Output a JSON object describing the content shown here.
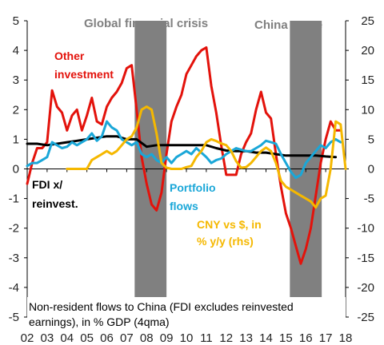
{
  "chart_data": {
    "type": "line",
    "title": "",
    "caption_lines": [
      "Non-resident flows to China (FDI excludes reinvested",
      "earnings),  in % GDP (4qma)"
    ],
    "x_tick_labels": [
      "02",
      "03",
      "04",
      "05",
      "06",
      "07",
      "08",
      "09",
      "10",
      "11",
      "12",
      "13",
      "14",
      "15",
      "16",
      "17",
      "18"
    ],
    "xlim": [
      2002,
      2018
    ],
    "y_left": {
      "lim": [
        -5,
        5
      ],
      "ticks": [
        -5,
        -4,
        -3,
        -2,
        -1,
        0,
        1,
        2,
        3,
        4,
        5
      ]
    },
    "y_right": {
      "lim": [
        -25,
        25
      ],
      "ticks": [
        -25,
        -20,
        -15,
        -10,
        -5,
        0,
        5,
        10,
        15,
        20,
        25
      ],
      "label": "rhs"
    },
    "bands": [
      {
        "label": "Global  financial crisis",
        "x0": 2007.4,
        "x1": 2009.0,
        "color": "#808080"
      },
      {
        "label": "China scare",
        "x0": 2015.2,
        "x1": 2016.8,
        "color": "#808080"
      }
    ],
    "series": [
      {
        "name": "Other investment",
        "label_lines": [
          "Other",
          "investment"
        ],
        "axis": "left",
        "color": "#e3120b",
        "x": [
          2002.0,
          2002.25,
          2002.5,
          2002.75,
          2003.0,
          2003.25,
          2003.5,
          2003.75,
          2004.0,
          2004.25,
          2004.5,
          2004.75,
          2005.0,
          2005.25,
          2005.5,
          2005.75,
          2006.0,
          2006.25,
          2006.5,
          2006.75,
          2007.0,
          2007.25,
          2007.5,
          2007.75,
          2008.0,
          2008.25,
          2008.5,
          2008.75,
          2009.0,
          2009.25,
          2009.5,
          2009.75,
          2010.0,
          2010.25,
          2010.5,
          2010.75,
          2011.0,
          2011.25,
          2011.5,
          2011.75,
          2012.0,
          2012.25,
          2012.5,
          2012.75,
          2013.0,
          2013.25,
          2013.5,
          2013.75,
          2014.0,
          2014.25,
          2014.5,
          2014.75,
          2015.0,
          2015.25,
          2015.5,
          2015.75,
          2016.0,
          2016.25,
          2016.5,
          2016.75,
          2017.0,
          2017.25,
          2017.5,
          2017.75
        ],
        "values": [
          -0.5,
          0.2,
          0.7,
          0.7,
          0.9,
          2.65,
          2.1,
          1.9,
          1.3,
          1.8,
          2.0,
          1.3,
          1.8,
          2.4,
          1.6,
          1.5,
          2.1,
          2.4,
          2.6,
          2.9,
          3.4,
          3.5,
          2.0,
          0.4,
          -0.5,
          -1.2,
          -1.4,
          -0.8,
          0.5,
          1.6,
          2.1,
          2.5,
          3.2,
          3.5,
          3.8,
          4.0,
          4.1,
          2.8,
          1.9,
          0.8,
          -0.2,
          -0.2,
          -0.2,
          0.5,
          0.9,
          1.2,
          2.0,
          2.6,
          1.9,
          1.7,
          0.5,
          -0.6,
          -1.5,
          -2.0,
          -2.6,
          -3.2,
          -2.7,
          -2.0,
          -0.9,
          0.2,
          1.0,
          1.6,
          1.3,
          1.3
        ]
      },
      {
        "name": "FDI x/ reinvest.",
        "label_lines": [
          "FDI x/",
          "reinvest."
        ],
        "axis": "left",
        "color": "#000000",
        "x": [
          2002.0,
          2002.5,
          2003.0,
          2003.5,
          2004.0,
          2004.5,
          2005.0,
          2005.5,
          2006.0,
          2006.5,
          2007.0,
          2007.5,
          2008.0,
          2008.5,
          2009.0,
          2009.5,
          2010.0,
          2010.5,
          2011.0,
          2011.5,
          2012.0,
          2012.5,
          2013.0,
          2013.5,
          2014.0,
          2014.5,
          2015.0,
          2015.5,
          2016.0,
          2016.5,
          2017.0,
          2017.5
        ],
        "values": [
          0.85,
          0.85,
          0.8,
          0.85,
          0.9,
          0.95,
          1.0,
          1.05,
          1.1,
          1.1,
          1.0,
          1.0,
          0.75,
          0.8,
          0.8,
          0.8,
          0.8,
          0.8,
          0.8,
          0.7,
          0.62,
          0.6,
          0.6,
          0.55,
          0.55,
          0.5,
          0.45,
          0.45,
          0.45,
          0.45,
          0.42,
          0.4
        ]
      },
      {
        "name": "Portfolio flows",
        "label_lines": [
          "Portfolio",
          "flows"
        ],
        "axis": "left",
        "color": "#1aa7d8",
        "x": [
          2002.0,
          2002.25,
          2002.5,
          2002.75,
          2003.0,
          2003.25,
          2003.5,
          2003.75,
          2004.0,
          2004.25,
          2004.5,
          2004.75,
          2005.0,
          2005.25,
          2005.5,
          2005.75,
          2006.0,
          2006.25,
          2006.5,
          2006.75,
          2007.0,
          2007.25,
          2007.5,
          2007.75,
          2008.0,
          2008.25,
          2008.5,
          2008.75,
          2009.0,
          2009.25,
          2009.5,
          2009.75,
          2010.0,
          2010.25,
          2010.5,
          2010.75,
          2011.0,
          2011.25,
          2011.5,
          2011.75,
          2012.0,
          2012.25,
          2012.5,
          2012.75,
          2013.0,
          2013.25,
          2013.5,
          2013.75,
          2014.0,
          2014.25,
          2014.5,
          2014.75,
          2015.0,
          2015.25,
          2015.5,
          2015.75,
          2016.0,
          2016.25,
          2016.5,
          2016.75,
          2017.0,
          2017.25,
          2017.5,
          2017.75
        ],
        "values": [
          0.1,
          0.2,
          0.2,
          0.3,
          0.4,
          0.9,
          0.8,
          0.7,
          0.75,
          0.9,
          0.8,
          0.9,
          1.0,
          1.2,
          0.95,
          1.1,
          1.6,
          1.4,
          1.3,
          1.0,
          0.9,
          0.8,
          0.9,
          0.5,
          0.4,
          0.5,
          0.3,
          0.2,
          0.4,
          0.2,
          0.4,
          0.5,
          0.6,
          0.5,
          0.7,
          0.55,
          0.4,
          0.2,
          0.3,
          0.35,
          0.5,
          0.6,
          0.7,
          0.65,
          0.6,
          0.6,
          0.7,
          0.8,
          0.95,
          0.9,
          0.85,
          0.5,
          0.2,
          -0.1,
          -0.3,
          -0.2,
          0.2,
          0.4,
          0.6,
          0.8,
          0.7,
          0.9,
          1.0,
          0.9
        ]
      },
      {
        "name": "CNY vs $, in % y/y (rhs)",
        "label_lines": [
          "CNY vs $, in",
          "% y/y (rhs)"
        ],
        "axis": "right",
        "color": "#f5b800",
        "x": [
          2004.0,
          2004.25,
          2004.5,
          2004.75,
          2005.0,
          2005.25,
          2005.5,
          2005.75,
          2006.0,
          2006.25,
          2006.5,
          2006.75,
          2007.0,
          2007.25,
          2007.5,
          2007.75,
          2008.0,
          2008.25,
          2008.5,
          2008.75,
          2009.0,
          2009.25,
          2009.5,
          2009.75,
          2010.0,
          2010.25,
          2010.5,
          2010.75,
          2011.0,
          2011.25,
          2011.5,
          2011.75,
          2012.0,
          2012.25,
          2012.5,
          2012.75,
          2013.0,
          2013.25,
          2013.5,
          2013.75,
          2014.0,
          2014.25,
          2014.5,
          2014.75,
          2015.0,
          2015.25,
          2015.5,
          2015.75,
          2016.0,
          2016.25,
          2016.5,
          2016.75,
          2017.0,
          2017.25,
          2017.5,
          2017.75,
          2018.0
        ],
        "values": [
          0,
          0,
          0,
          0,
          0,
          1.5,
          2,
          2.5,
          3,
          2.5,
          3,
          4,
          5,
          5.5,
          7,
          10,
          10.5,
          10,
          6,
          1,
          0.2,
          0,
          0,
          0,
          0.3,
          0.5,
          2,
          3,
          4.5,
          5,
          4.7,
          4.3,
          4,
          3,
          1.3,
          0.2,
          0.3,
          1,
          2,
          3,
          3.6,
          3,
          1,
          -2,
          -3,
          -3.5,
          -4,
          -4.5,
          -5,
          -5.5,
          -6.5,
          -5,
          -4.5,
          0,
          8,
          7.5,
          0
        ]
      }
    ]
  }
}
